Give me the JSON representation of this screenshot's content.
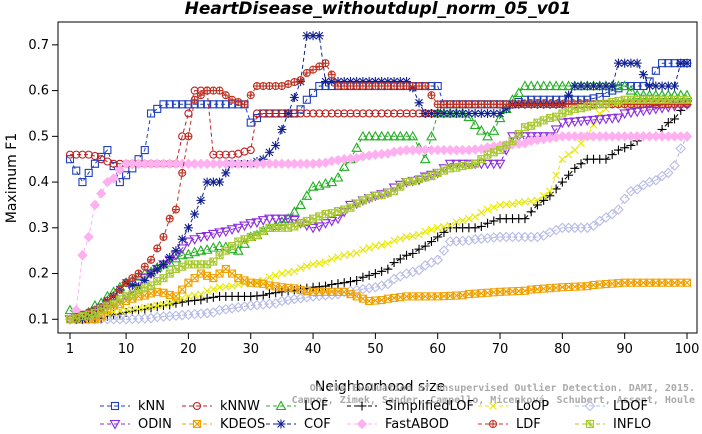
{
  "chart_data": {
    "type": "line",
    "title": "HeartDisease_withoutdupl_norm_05_v01",
    "xlabel": "Neighborhood size",
    "ylabel": "Maximum F1",
    "xlim": [
      1,
      100
    ],
    "ylim": [
      0.07,
      0.75
    ],
    "x_ticks": [
      1,
      10,
      20,
      30,
      40,
      50,
      60,
      70,
      80,
      90,
      100
    ],
    "y_ticks": [
      0.1,
      0.2,
      0.3,
      0.4,
      0.5,
      0.6,
      0.7
    ],
    "legend_placement": "bottom",
    "watermark": [
      "Campos, Zimek, Sander, Campello, Micenková, Schubert, Assent, Houle",
      "On the Evaluation of Unsupervised Outlier Detection. DAMI, 2015."
    ],
    "series": [
      {
        "name": "kNN",
        "color": "#1f3fbf",
        "marker": "square",
        "points": [
          [
            1,
            0.45
          ],
          [
            3,
            0.4
          ],
          [
            5,
            0.44
          ],
          [
            7,
            0.47
          ],
          [
            9,
            0.4
          ],
          [
            11,
            0.43
          ],
          [
            13,
            0.47
          ],
          [
            14,
            0.55
          ],
          [
            16,
            0.57
          ],
          [
            20,
            0.57
          ],
          [
            29,
            0.57
          ],
          [
            30,
            0.53
          ],
          [
            32,
            0.55
          ],
          [
            37,
            0.55
          ],
          [
            41,
            0.61
          ],
          [
            44,
            0.61
          ],
          [
            46,
            0.61
          ],
          [
            60,
            0.61
          ],
          [
            61,
            0.57
          ],
          [
            72,
            0.57
          ],
          [
            74,
            0.58
          ],
          [
            84,
            0.58
          ],
          [
            90,
            0.61
          ],
          [
            93,
            0.61
          ],
          [
            96,
            0.66
          ],
          [
            100,
            0.66
          ]
        ]
      },
      {
        "name": "kNNW",
        "color": "#c02020",
        "marker": "circle",
        "points": [
          [
            1,
            0.46
          ],
          [
            4,
            0.46
          ],
          [
            8,
            0.44
          ],
          [
            18,
            0.44
          ],
          [
            19,
            0.5
          ],
          [
            21,
            0.6
          ],
          [
            23,
            0.6
          ],
          [
            24,
            0.46
          ],
          [
            27,
            0.46
          ],
          [
            30,
            0.47
          ],
          [
            31,
            0.55
          ],
          [
            60,
            0.55
          ],
          [
            61,
            0.57
          ],
          [
            100,
            0.57
          ]
        ]
      },
      {
        "name": "LOF",
        "color": "#20b020",
        "marker": "triangle-up",
        "points": [
          [
            1,
            0.12
          ],
          [
            3,
            0.1
          ],
          [
            5,
            0.13
          ],
          [
            8,
            0.16
          ],
          [
            10,
            0.18
          ],
          [
            13,
            0.2
          ],
          [
            16,
            0.22
          ],
          [
            19,
            0.24
          ],
          [
            22,
            0.25
          ],
          [
            25,
            0.26
          ],
          [
            28,
            0.25
          ],
          [
            30,
            0.28
          ],
          [
            33,
            0.3
          ],
          [
            36,
            0.32
          ],
          [
            38,
            0.35
          ],
          [
            40,
            0.39
          ],
          [
            43,
            0.4
          ],
          [
            46,
            0.45
          ],
          [
            48,
            0.5
          ],
          [
            56,
            0.5
          ],
          [
            58,
            0.45
          ],
          [
            60,
            0.55
          ],
          [
            64,
            0.55
          ],
          [
            68,
            0.5
          ],
          [
            72,
            0.58
          ],
          [
            74,
            0.61
          ],
          [
            90,
            0.61
          ],
          [
            92,
            0.59
          ],
          [
            100,
            0.59
          ]
        ]
      },
      {
        "name": "SimplifiedLOF",
        "color": "#000000",
        "marker": "plus",
        "points": [
          [
            1,
            0.1
          ],
          [
            5,
            0.1
          ],
          [
            8,
            0.11
          ],
          [
            12,
            0.12
          ],
          [
            16,
            0.13
          ],
          [
            20,
            0.14
          ],
          [
            25,
            0.15
          ],
          [
            30,
            0.15
          ],
          [
            35,
            0.16
          ],
          [
            40,
            0.17
          ],
          [
            45,
            0.18
          ],
          [
            50,
            0.2
          ],
          [
            55,
            0.24
          ],
          [
            58,
            0.26
          ],
          [
            60,
            0.28
          ],
          [
            62,
            0.3
          ],
          [
            66,
            0.3
          ],
          [
            70,
            0.32
          ],
          [
            74,
            0.32
          ],
          [
            76,
            0.35
          ],
          [
            78,
            0.37
          ],
          [
            80,
            0.4
          ],
          [
            82,
            0.43
          ],
          [
            84,
            0.45
          ],
          [
            87,
            0.45
          ],
          [
            89,
            0.47
          ],
          [
            91,
            0.48
          ],
          [
            93,
            0.5
          ],
          [
            95,
            0.5
          ],
          [
            97,
            0.53
          ],
          [
            100,
            0.57
          ]
        ]
      },
      {
        "name": "LoOP",
        "color": "#e8e800",
        "marker": "cross",
        "points": [
          [
            1,
            0.1
          ],
          [
            5,
            0.11
          ],
          [
            10,
            0.12
          ],
          [
            15,
            0.13
          ],
          [
            20,
            0.15
          ],
          [
            25,
            0.17
          ],
          [
            30,
            0.18
          ],
          [
            35,
            0.2
          ],
          [
            40,
            0.22
          ],
          [
            45,
            0.24
          ],
          [
            50,
            0.26
          ],
          [
            55,
            0.28
          ],
          [
            60,
            0.3
          ],
          [
            65,
            0.32
          ],
          [
            68,
            0.34
          ],
          [
            70,
            0.35
          ],
          [
            76,
            0.36
          ],
          [
            78,
            0.38
          ],
          [
            80,
            0.45
          ],
          [
            82,
            0.47
          ],
          [
            84,
            0.5
          ],
          [
            86,
            0.55
          ],
          [
            88,
            0.57
          ],
          [
            100,
            0.57
          ]
        ]
      },
      {
        "name": "LDOF",
        "color": "#b8bce8",
        "marker": "diamond",
        "points": [
          [
            1,
            0.1
          ],
          [
            10,
            0.1
          ],
          [
            20,
            0.11
          ],
          [
            30,
            0.13
          ],
          [
            40,
            0.15
          ],
          [
            50,
            0.17
          ],
          [
            55,
            0.2
          ],
          [
            60,
            0.23
          ],
          [
            62,
            0.27
          ],
          [
            70,
            0.28
          ],
          [
            76,
            0.28
          ],
          [
            80,
            0.3
          ],
          [
            84,
            0.3
          ],
          [
            88,
            0.33
          ],
          [
            91,
            0.38
          ],
          [
            94,
            0.4
          ],
          [
            97,
            0.42
          ],
          [
            100,
            0.5
          ]
        ]
      },
      {
        "name": "ODIN",
        "color": "#8a2be2",
        "marker": "triangle-down",
        "points": [
          [
            1,
            0.1
          ],
          [
            4,
            0.11
          ],
          [
            7,
            0.13
          ],
          [
            10,
            0.15
          ],
          [
            12,
            0.18
          ],
          [
            14,
            0.2
          ],
          [
            16,
            0.22
          ],
          [
            18,
            0.24
          ],
          [
            20,
            0.27
          ],
          [
            22,
            0.28
          ],
          [
            25,
            0.29
          ],
          [
            28,
            0.3
          ],
          [
            30,
            0.31
          ],
          [
            33,
            0.32
          ],
          [
            36,
            0.32
          ],
          [
            40,
            0.3
          ],
          [
            44,
            0.32
          ],
          [
            46,
            0.35
          ],
          [
            50,
            0.37
          ],
          [
            55,
            0.4
          ],
          [
            60,
            0.42
          ],
          [
            62,
            0.44
          ],
          [
            70,
            0.44
          ],
          [
            72,
            0.5
          ],
          [
            78,
            0.5
          ],
          [
            80,
            0.53
          ],
          [
            100,
            0.57
          ]
        ]
      },
      {
        "name": "KDEOS",
        "color": "#f0a000",
        "marker": "square-x",
        "points": [
          [
            1,
            0.1
          ],
          [
            5,
            0.1
          ],
          [
            8,
            0.13
          ],
          [
            12,
            0.15
          ],
          [
            15,
            0.16
          ],
          [
            18,
            0.15
          ],
          [
            20,
            0.18
          ],
          [
            22,
            0.2
          ],
          [
            24,
            0.19
          ],
          [
            26,
            0.21
          ],
          [
            28,
            0.19
          ],
          [
            30,
            0.18
          ],
          [
            35,
            0.17
          ],
          [
            40,
            0.16
          ],
          [
            45,
            0.16
          ],
          [
            47,
            0.15
          ],
          [
            49,
            0.14
          ],
          [
            55,
            0.15
          ],
          [
            60,
            0.15
          ],
          [
            70,
            0.16
          ],
          [
            80,
            0.17
          ],
          [
            90,
            0.18
          ],
          [
            100,
            0.18
          ]
        ]
      },
      {
        "name": "COF",
        "color": "#102090",
        "marker": "star",
        "points": [
          [
            1,
            0.1
          ],
          [
            3,
            0.1
          ],
          [
            5,
            0.12
          ],
          [
            8,
            0.15
          ],
          [
            10,
            0.18
          ],
          [
            12,
            0.17
          ],
          [
            14,
            0.2
          ],
          [
            16,
            0.22
          ],
          [
            18,
            0.25
          ],
          [
            20,
            0.3
          ],
          [
            22,
            0.36
          ],
          [
            23,
            0.4
          ],
          [
            25,
            0.4
          ],
          [
            27,
            0.44
          ],
          [
            30,
            0.44
          ],
          [
            32,
            0.45
          ],
          [
            34,
            0.48
          ],
          [
            36,
            0.55
          ],
          [
            38,
            0.62
          ],
          [
            39,
            0.72
          ],
          [
            41,
            0.72
          ],
          [
            42,
            0.62
          ],
          [
            46,
            0.62
          ],
          [
            55,
            0.62
          ],
          [
            58,
            0.55
          ],
          [
            62,
            0.55
          ],
          [
            66,
            0.55
          ],
          [
            70,
            0.55
          ],
          [
            72,
            0.57
          ],
          [
            80,
            0.57
          ],
          [
            82,
            0.61
          ],
          [
            88,
            0.61
          ],
          [
            89,
            0.66
          ],
          [
            92,
            0.66
          ],
          [
            94,
            0.61
          ],
          [
            98,
            0.61
          ],
          [
            99,
            0.66
          ],
          [
            100,
            0.66
          ]
        ]
      },
      {
        "name": "FastABOD",
        "color": "#ffb0f0",
        "marker": "diamond-filled",
        "points": [
          [
            1,
            0.1
          ],
          [
            2,
            0.12
          ],
          [
            3,
            0.24
          ],
          [
            4,
            0.28
          ],
          [
            5,
            0.35
          ],
          [
            7,
            0.4
          ],
          [
            10,
            0.44
          ],
          [
            20,
            0.44
          ],
          [
            30,
            0.44
          ],
          [
            40,
            0.44
          ],
          [
            45,
            0.45
          ],
          [
            50,
            0.46
          ],
          [
            55,
            0.47
          ],
          [
            60,
            0.47
          ],
          [
            65,
            0.47
          ],
          [
            70,
            0.48
          ],
          [
            80,
            0.5
          ],
          [
            90,
            0.5
          ],
          [
            100,
            0.5
          ]
        ]
      },
      {
        "name": "LDF",
        "color": "#c03020",
        "marker": "circle-plus",
        "points": [
          [
            1,
            0.1
          ],
          [
            3,
            0.11
          ],
          [
            5,
            0.12
          ],
          [
            8,
            0.15
          ],
          [
            10,
            0.18
          ],
          [
            12,
            0.2
          ],
          [
            14,
            0.23
          ],
          [
            16,
            0.28
          ],
          [
            17,
            0.32
          ],
          [
            18,
            0.34
          ],
          [
            19,
            0.42
          ],
          [
            20,
            0.5
          ],
          [
            21,
            0.58
          ],
          [
            23,
            0.6
          ],
          [
            25,
            0.6
          ],
          [
            27,
            0.58
          ],
          [
            29,
            0.57
          ],
          [
            31,
            0.61
          ],
          [
            35,
            0.61
          ],
          [
            42,
            0.66
          ],
          [
            44,
            0.61
          ],
          [
            58,
            0.61
          ],
          [
            60,
            0.57
          ],
          [
            100,
            0.57
          ]
        ]
      },
      {
        "name": "INFLO",
        "color": "#a8c830",
        "marker": "square-star",
        "points": [
          [
            1,
            0.1
          ],
          [
            4,
            0.11
          ],
          [
            7,
            0.13
          ],
          [
            10,
            0.15
          ],
          [
            13,
            0.17
          ],
          [
            16,
            0.19
          ],
          [
            18,
            0.21
          ],
          [
            20,
            0.22
          ],
          [
            23,
            0.22
          ],
          [
            26,
            0.25
          ],
          [
            28,
            0.27
          ],
          [
            30,
            0.28
          ],
          [
            33,
            0.3
          ],
          [
            36,
            0.3
          ],
          [
            40,
            0.32
          ],
          [
            42,
            0.33
          ],
          [
            45,
            0.34
          ],
          [
            48,
            0.36
          ],
          [
            50,
            0.37
          ],
          [
            53,
            0.38
          ],
          [
            55,
            0.4
          ],
          [
            58,
            0.41
          ],
          [
            62,
            0.43
          ],
          [
            66,
            0.44
          ],
          [
            68,
            0.46
          ],
          [
            70,
            0.47
          ],
          [
            72,
            0.49
          ],
          [
            74,
            0.52
          ],
          [
            78,
            0.54
          ],
          [
            82,
            0.56
          ],
          [
            86,
            0.57
          ],
          [
            90,
            0.58
          ],
          [
            100,
            0.58
          ]
        ]
      }
    ]
  }
}
